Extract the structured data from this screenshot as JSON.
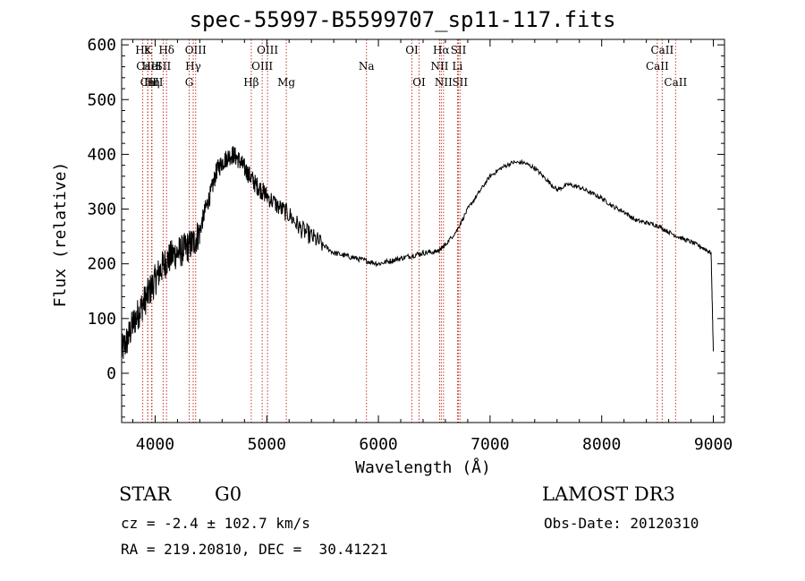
{
  "chart_data": {
    "type": "line",
    "title": "spec-55997-B5599707_sp11-117.fits",
    "xlabel": "Wavelength (Å)",
    "ylabel": "Flux (relative)",
    "xlim": [
      3700,
      9100
    ],
    "ylim": [
      -90,
      610
    ],
    "xticks": [
      4000,
      5000,
      6000,
      7000,
      8000,
      9000
    ],
    "yticks": [
      0,
      100,
      200,
      300,
      400,
      500,
      600
    ],
    "series": [
      {
        "name": "spectrum",
        "x": [
          3700,
          3750,
          3800,
          3850,
          3900,
          3950,
          4000,
          4050,
          4100,
          4150,
          4200,
          4250,
          4300,
          4350,
          4400,
          4450,
          4500,
          4550,
          4600,
          4650,
          4700,
          4750,
          4800,
          4850,
          4900,
          4950,
          5000,
          5100,
          5200,
          5300,
          5400,
          5500,
          5600,
          5700,
          5800,
          5900,
          6000,
          6100,
          6200,
          6300,
          6400,
          6500,
          6550,
          6600,
          6700,
          6800,
          6900,
          7000,
          7100,
          7200,
          7300,
          7400,
          7500,
          7600,
          7700,
          7800,
          7900,
          8000,
          8100,
          8200,
          8300,
          8400,
          8500,
          8600,
          8700,
          8800,
          8900,
          8980,
          9000
        ],
        "y": [
          40,
          60,
          90,
          110,
          130,
          150,
          170,
          190,
          205,
          215,
          220,
          225,
          232,
          240,
          260,
          300,
          330,
          370,
          385,
          395,
          400,
          390,
          375,
          360,
          345,
          335,
          325,
          305,
          290,
          265,
          250,
          235,
          220,
          215,
          210,
          205,
          200,
          205,
          210,
          215,
          220,
          222,
          225,
          235,
          260,
          300,
          330,
          360,
          375,
          385,
          385,
          375,
          355,
          335,
          345,
          340,
          330,
          320,
          305,
          295,
          280,
          275,
          270,
          258,
          248,
          240,
          230,
          220,
          40
        ]
      }
    ],
    "lines": [
      {
        "label": "Hε",
        "wl": 3889,
        "row": 1
      },
      {
        "label": "CaII",
        "wl": 3934,
        "row": 2
      },
      {
        "label": "K",
        "wl": 3934,
        "row": 1
      },
      {
        "label": "HeI",
        "wl": 3970,
        "row": 2
      },
      {
        "label": "Hη",
        "wl": 3970,
        "row": 3
      },
      {
        "label": "CaII",
        "wl": 3969,
        "row": 3
      },
      {
        "label": "SII",
        "wl": 4072,
        "row": 2
      },
      {
        "label": "H",
        "wl": 3970,
        "row": 3
      },
      {
        "label": "Hδ",
        "wl": 4102,
        "row": 1
      },
      {
        "label": "OIII",
        "wl": 4363,
        "row": 1
      },
      {
        "label": "Hγ",
        "wl": 4341,
        "row": 2
      },
      {
        "label": "G",
        "wl": 4305,
        "row": 3
      },
      {
        "label": "Hβ",
        "wl": 4861,
        "row": 3
      },
      {
        "label": "OIII",
        "wl": 5007,
        "row": 1
      },
      {
        "label": "OIII",
        "wl": 4959,
        "row": 2
      },
      {
        "label": "Mg",
        "wl": 5175,
        "row": 3
      },
      {
        "label": "Na",
        "wl": 5893,
        "row": 2
      },
      {
        "label": "OI",
        "wl": 6300,
        "row": 1
      },
      {
        "label": "OI",
        "wl": 6364,
        "row": 3
      },
      {
        "label": "Hα",
        "wl": 6563,
        "row": 1
      },
      {
        "label": "NII",
        "wl": 6548,
        "row": 2
      },
      {
        "label": "NII",
        "wl": 6583,
        "row": 3
      },
      {
        "label": "SII",
        "wl": 6717,
        "row": 1
      },
      {
        "label": "Li",
        "wl": 6708,
        "row": 2
      },
      {
        "label": "SII",
        "wl": 6731,
        "row": 3
      },
      {
        "label": "CaII",
        "wl": 8498,
        "row": 2
      },
      {
        "label": "CaII",
        "wl": 8542,
        "row": 1
      },
      {
        "label": "CaII",
        "wl": 8662,
        "row": 3
      }
    ]
  },
  "info": {
    "obj_class": "STAR",
    "obj_subclass": "G0",
    "survey": "LAMOST DR3",
    "cz": "cz = -2.4 ± 102.7 km/s",
    "obs_date": "Obs-Date: 20120310",
    "radec": "RA = 219.20810, DEC =  30.41221"
  }
}
